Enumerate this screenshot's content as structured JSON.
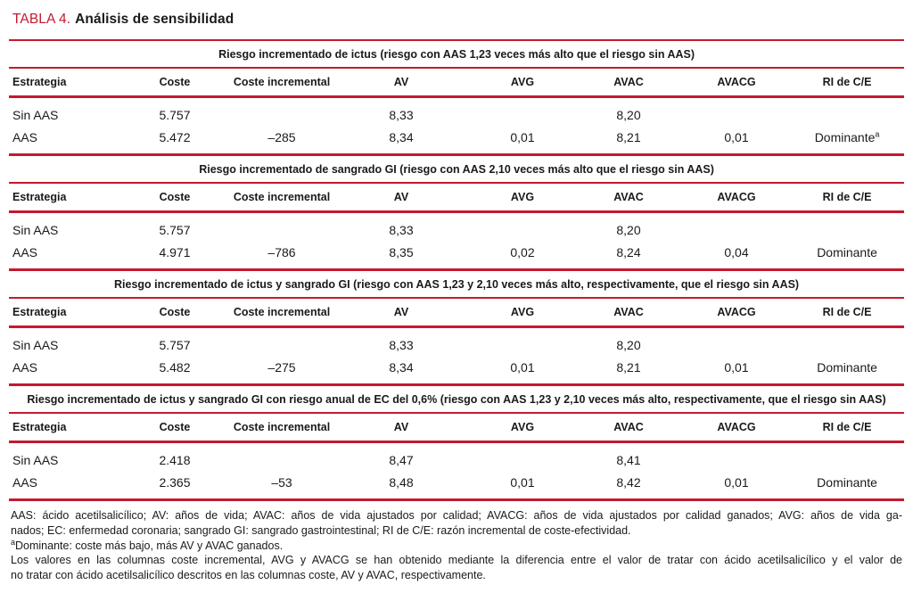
{
  "header": {
    "label": "TABLA 4.",
    "title": "Análisis de sensibilidad"
  },
  "columns": [
    "Estrategia",
    "Coste",
    "Coste incremental",
    "AV",
    "AVG",
    "AVAC",
    "AVACG",
    "RI de C/E"
  ],
  "sections": [
    {
      "title": "Riesgo incrementado de ictus (riesgo con AAS 1,23 veces más alto que el riesgo sin AAS)",
      "rows": [
        {
          "cells": [
            "Sin AAS",
            "5.757",
            "",
            "8,33",
            "",
            "8,20",
            "",
            ""
          ],
          "ri_sup": ""
        },
        {
          "cells": [
            "AAS",
            "5.472",
            "–285",
            "8,34",
            "0,01",
            "8,21",
            "0,01",
            "Dominante"
          ],
          "ri_sup": "a"
        }
      ]
    },
    {
      "title": "Riesgo incrementado de sangrado GI (riesgo con AAS 2,10 veces más alto que el riesgo sin AAS)",
      "rows": [
        {
          "cells": [
            "Sin AAS",
            "5.757",
            "",
            "8,33",
            "",
            "8,20",
            "",
            ""
          ],
          "ri_sup": ""
        },
        {
          "cells": [
            "AAS",
            "4.971",
            "–786",
            "8,35",
            "0,02",
            "8,24",
            "0,04",
            "Dominante"
          ],
          "ri_sup": ""
        }
      ]
    },
    {
      "title": "Riesgo incrementado de ictus y sangrado GI (riesgo con AAS 1,23 y 2,10 veces más alto, respectivamente, que el riesgo sin AAS)",
      "rows": [
        {
          "cells": [
            "Sin AAS",
            "5.757",
            "",
            "8,33",
            "",
            "8,20",
            "",
            ""
          ],
          "ri_sup": ""
        },
        {
          "cells": [
            "AAS",
            "5.482",
            "–275",
            "8,34",
            "0,01",
            "8,21",
            "0,01",
            "Dominante"
          ],
          "ri_sup": ""
        }
      ]
    },
    {
      "title": "Riesgo incrementado de ictus y sangrado GI con riesgo anual de EC del 0,6% (riesgo con AAS 1,23 y 2,10 veces más alto, respectivamente, que el riesgo sin AAS)",
      "rows": [
        {
          "cells": [
            "Sin AAS",
            "2.418",
            "",
            "8,47",
            "",
            "8,41",
            "",
            ""
          ],
          "ri_sup": ""
        },
        {
          "cells": [
            "AAS",
            "2.365",
            "–53",
            "8,48",
            "0,01",
            "8,42",
            "0,01",
            "Dominante"
          ],
          "ri_sup": ""
        }
      ]
    }
  ],
  "footnotes": {
    "abbrev_line1": "AAS: ácido acetilsalicílico; AV: años de vida; AVAC: años de vida ajustados por calidad; AVACG: años de vida ajustados por calidad ganados; AVG: años de vida ga-",
    "abbrev_line2": "nados; EC: enfermedad coronaria; sangrado GI: sangrado gastrointestinal; RI de C/E: razón incremental de coste-efectividad.",
    "note_a_sup": "a",
    "note_a": "Dominante: coste más bajo, más AV y AVAC ganados.",
    "values_line1": "Los valores en las columnas coste incremental, AVG y AVACG se han obtenido mediante la diferencia entre el valor de tratar con ácido acetilsalicílico y el valor de",
    "values_line2": "no tratar con ácido acetilsalicílico descritos en las columnas coste, AV y AVAC, respectivamente."
  },
  "colors": {
    "accent_red": "#c41a2e",
    "text": "#1a1a1a"
  }
}
